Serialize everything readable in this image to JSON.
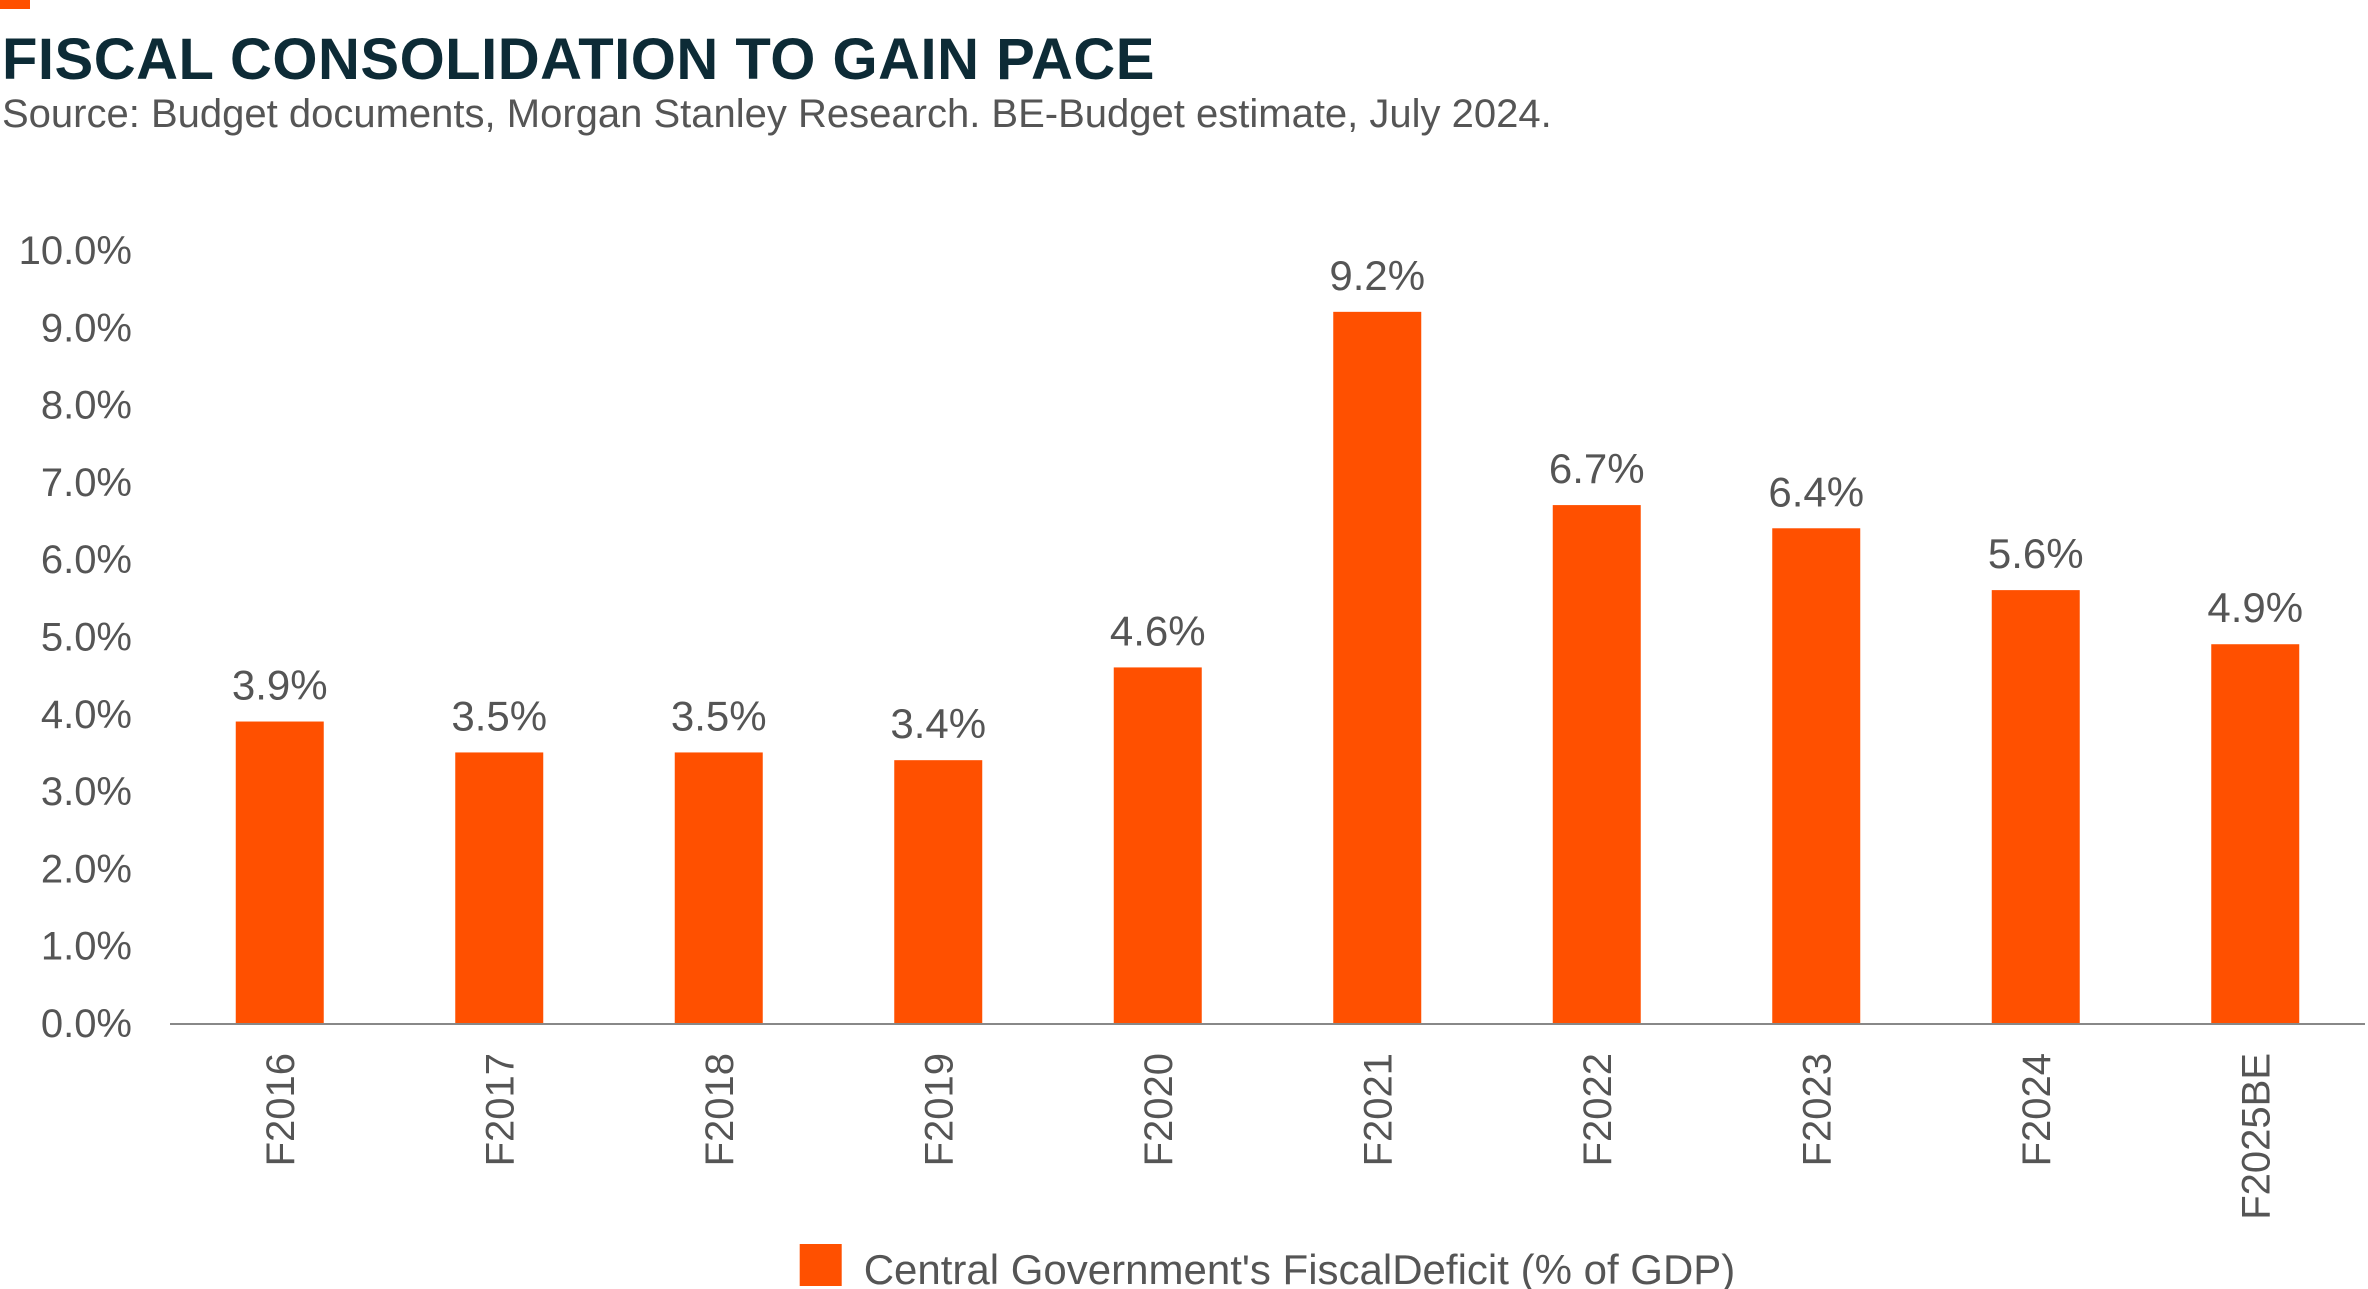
{
  "title": "FISCAL CONSOLIDATION TO GAIN PACE",
  "subtitle": "Source: Budget documents, Morgan Stanley Research. BE-Budget estimate, July 2024.",
  "colors": {
    "bar": "#ff5000",
    "accent": "#ff5000",
    "title": "#0d2b36",
    "text": "#555555",
    "axis": "#888888"
  },
  "chart_data": {
    "type": "bar",
    "categories": [
      "F2016",
      "F2017",
      "F2018",
      "F2019",
      "F2020",
      "F2021",
      "F2022",
      "F2023",
      "F2024",
      "F2025BE"
    ],
    "series": [
      {
        "name": "Central Government's FiscalDeficit (% of GDP)",
        "values": [
          3.9,
          3.5,
          3.5,
          3.4,
          4.6,
          9.2,
          6.7,
          6.4,
          5.6,
          4.9
        ],
        "data_labels": [
          "3.9%",
          "3.5%",
          "3.5%",
          "3.4%",
          "4.6%",
          "9.2%",
          "6.7%",
          "6.4%",
          "5.6%",
          "4.9%"
        ]
      }
    ],
    "yticks": [
      0,
      1,
      2,
      3,
      4,
      5,
      6,
      7,
      8,
      9,
      10
    ],
    "ytick_labels": [
      "0.0%",
      "1.0%",
      "2.0%",
      "3.0%",
      "4.0%",
      "5.0%",
      "6.0%",
      "7.0%",
      "8.0%",
      "9.0%",
      "10.0%"
    ],
    "ylim": [
      0,
      10
    ],
    "xlabel": "",
    "ylabel": "",
    "grid": false,
    "legend": "bottom-center"
  }
}
